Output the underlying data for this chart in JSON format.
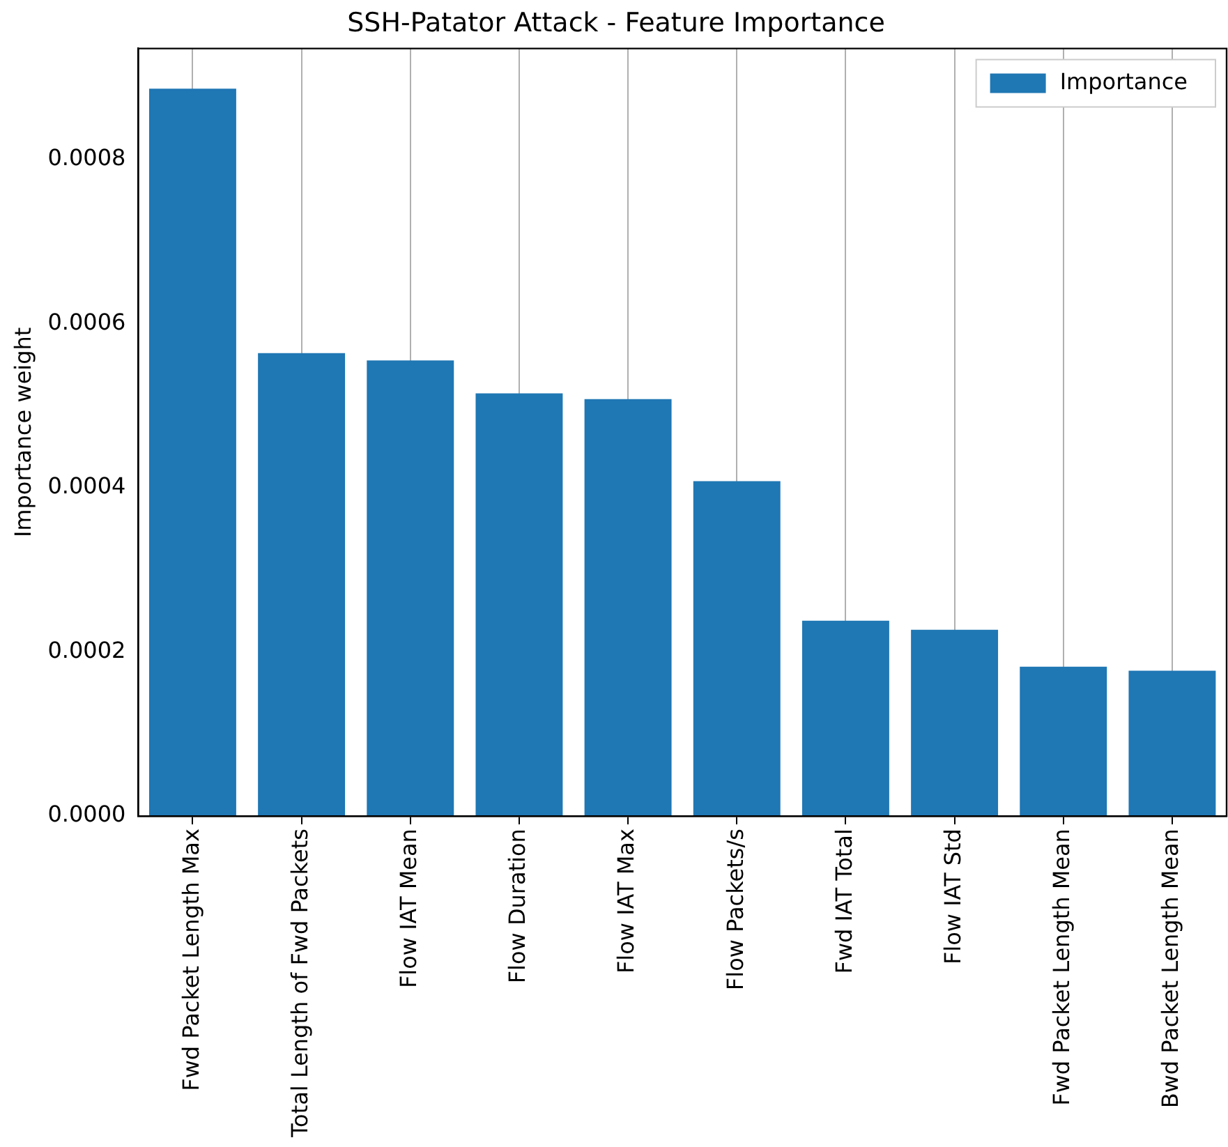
{
  "chart_data": {
    "type": "bar",
    "title": "SSH-Patator Attack - Feature Importance",
    "ylabel": "Importance weight",
    "categories": [
      "Fwd Packet Length Max",
      "Total Length of Fwd Packets",
      "Flow IAT Mean",
      "Flow Duration",
      "Flow IAT Max",
      "Flow Packets/s",
      "Fwd IAT Total",
      "Flow IAT Std",
      "Fwd Packet Length Mean",
      "Bwd Packet Length Mean"
    ],
    "series": [
      {
        "name": "Importance",
        "color": "#1f77b4",
        "values": [
          0.000886,
          0.000564,
          0.000555,
          0.000515,
          0.000508,
          0.000408,
          0.000238,
          0.000227,
          0.000182,
          0.000177
        ]
      }
    ],
    "ylim": [
      0,
      0.000935
    ],
    "yticks": [
      {
        "value": 0,
        "label": "0.0000"
      },
      {
        "value": 0.0002,
        "label": "0.0002"
      },
      {
        "value": 0.0004,
        "label": "0.0004"
      },
      {
        "value": 0.0006,
        "label": "0.0006"
      },
      {
        "value": 0.0008,
        "label": "0.0008"
      }
    ],
    "grid": "x",
    "legend": "top right"
  }
}
